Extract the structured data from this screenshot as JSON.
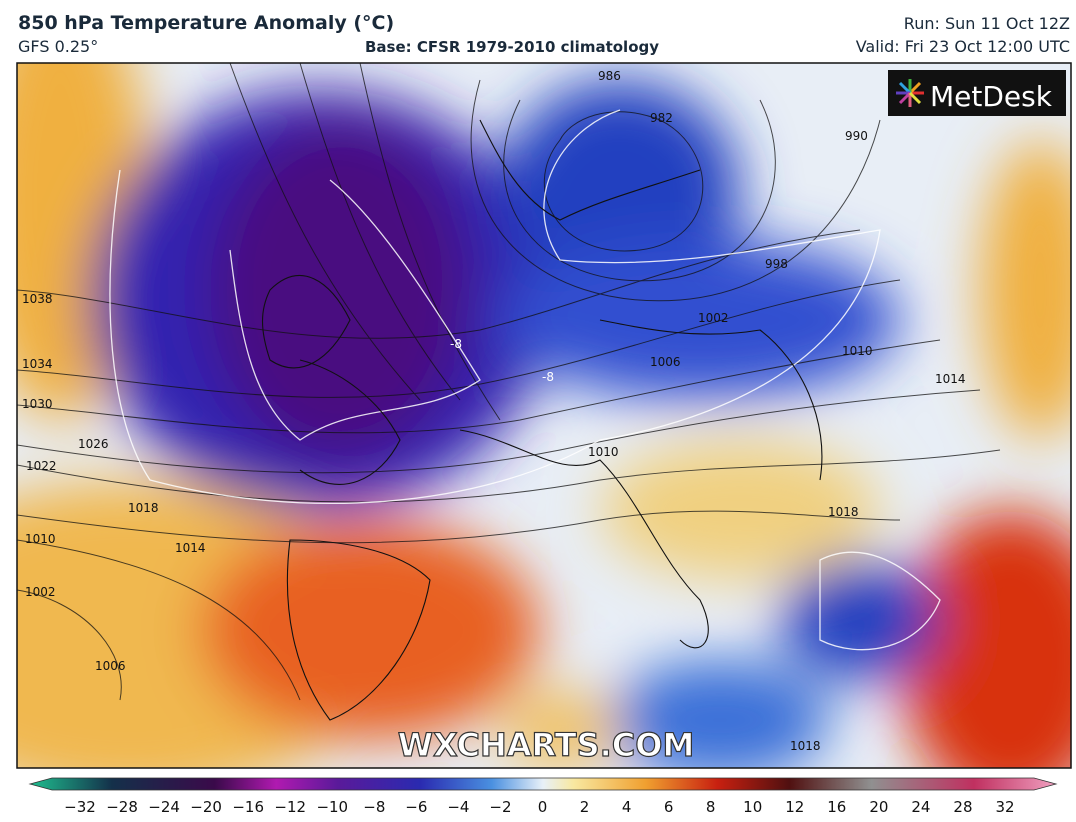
{
  "header": {
    "title": "850 hPa Temperature Anomaly (°C)",
    "model": "GFS 0.25°",
    "base": "Base: CFSR 1979-2010 climatology",
    "run": "Run: Sun 11 Oct 12Z",
    "valid": "Valid: Fri 23 Oct 12:00 UTC"
  },
  "logo": "MetDesk",
  "watermark": "WXCHARTS.COM",
  "isobar_labels": [
    "1038",
    "1034",
    "1030",
    "1026",
    "1022",
    "1018",
    "1014",
    "1010",
    "1002",
    "1006",
    "986",
    "982",
    "990",
    "998",
    "1002",
    "1006",
    "1010",
    "1014",
    "1018",
    "1010",
    "1018"
  ],
  "anomaly_labels": [
    "-8",
    "-8"
  ],
  "colorbar": {
    "ticks": [
      "−32",
      "−28",
      "−24",
      "−20",
      "−16",
      "−12",
      "−10",
      "−8",
      "−6",
      "−4",
      "−2",
      "0",
      "2",
      "4",
      "6",
      "8",
      "10",
      "12",
      "16",
      "20",
      "24",
      "28",
      "32"
    ]
  }
}
